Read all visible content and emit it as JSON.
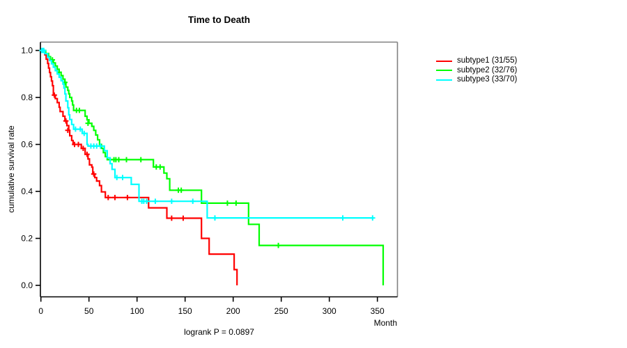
{
  "ui": {
    "title": "Time to Death",
    "y_axis_label": "cumulative survival rate",
    "x_axis_label": "Month",
    "footer": "logrank P = 0.0897",
    "legend": [
      {
        "label": "subtype1 (31/55)",
        "color": "#FF0000"
      },
      {
        "label": "subtype2 (32/76)",
        "color": "#00FF00"
      },
      {
        "label": "subtype3 (33/70)",
        "color": "#00FFFF"
      }
    ]
  },
  "chart_data": {
    "type": "line",
    "subtype": "kaplan-meier-step",
    "title": "Time to Death",
    "xlabel": "Month",
    "ylabel": "cumulative survival rate",
    "annotation": "logrank P = 0.0897",
    "xlim": [
      0,
      371
    ],
    "ylim": [
      0,
      1
    ],
    "grid": false,
    "legend_position": "right-outside",
    "x_ticks": [
      0,
      50,
      100,
      150,
      200,
      250,
      300,
      350
    ],
    "y_ticks": [
      0,
      0.2,
      0.4,
      0.6,
      0.8,
      1.0
    ],
    "axis_color": "#000000",
    "box_color": "#808080",
    "series": [
      {
        "name": "subtype1 (31/55)",
        "color": "#FF0000",
        "steps": [
          [
            0,
            1.0
          ],
          [
            4,
            0.982
          ],
          [
            5.5,
            0.963
          ],
          [
            7,
            0.945
          ],
          [
            8,
            0.925
          ],
          [
            9,
            0.906
          ],
          [
            10,
            0.888
          ],
          [
            11,
            0.87
          ],
          [
            12,
            0.85
          ],
          [
            13,
            0.81
          ],
          [
            15,
            0.795
          ],
          [
            17,
            0.778
          ],
          [
            19,
            0.758
          ],
          [
            20,
            0.74
          ],
          [
            23,
            0.72
          ],
          [
            25,
            0.7
          ],
          [
            27,
            0.68
          ],
          [
            29,
            0.66
          ],
          [
            30,
            0.637
          ],
          [
            32,
            0.617
          ],
          [
            33.5,
            0.6
          ],
          [
            42,
            0.583
          ],
          [
            46,
            0.558
          ],
          [
            49,
            0.538
          ],
          [
            50.5,
            0.513
          ],
          [
            53,
            0.503
          ],
          [
            54,
            0.474
          ],
          [
            56,
            0.459
          ],
          [
            58,
            0.444
          ],
          [
            61,
            0.425
          ],
          [
            63,
            0.398
          ],
          [
            67,
            0.374
          ],
          [
            112,
            0.33
          ],
          [
            131,
            0.286
          ],
          [
            167,
            0.2
          ],
          [
            175,
            0.133
          ],
          [
            201,
            0.067
          ],
          [
            204,
            0.0
          ]
        ],
        "censors": [
          [
            14,
            0.81
          ],
          [
            26,
            0.7
          ],
          [
            28,
            0.66
          ],
          [
            35,
            0.6
          ],
          [
            39,
            0.6
          ],
          [
            44,
            0.583
          ],
          [
            48,
            0.558
          ],
          [
            55,
            0.474
          ],
          [
            70,
            0.374
          ],
          [
            77,
            0.374
          ],
          [
            90,
            0.374
          ],
          [
            136,
            0.286
          ],
          [
            148,
            0.286
          ]
        ]
      },
      {
        "name": "subtype2 (32/76)",
        "color": "#00FF00",
        "steps": [
          [
            0,
            1.0
          ],
          [
            5,
            0.987
          ],
          [
            8,
            0.974
          ],
          [
            10,
            0.96
          ],
          [
            13,
            0.947
          ],
          [
            15,
            0.934
          ],
          [
            17,
            0.92
          ],
          [
            19,
            0.907
          ],
          [
            21,
            0.893
          ],
          [
            23,
            0.878
          ],
          [
            25,
            0.864
          ],
          [
            26,
            0.844
          ],
          [
            28,
            0.83
          ],
          [
            29,
            0.815
          ],
          [
            30,
            0.8
          ],
          [
            32,
            0.785
          ],
          [
            33,
            0.768
          ],
          [
            34,
            0.745
          ],
          [
            46,
            0.72
          ],
          [
            48,
            0.705
          ],
          [
            50,
            0.69
          ],
          [
            53,
            0.677
          ],
          [
            55,
            0.66
          ],
          [
            57,
            0.64
          ],
          [
            59,
            0.62
          ],
          [
            61,
            0.6
          ],
          [
            63,
            0.583
          ],
          [
            65,
            0.565
          ],
          [
            67,
            0.548
          ],
          [
            69,
            0.535
          ],
          [
            117,
            0.504
          ],
          [
            128,
            0.478
          ],
          [
            131,
            0.454
          ],
          [
            134,
            0.405
          ],
          [
            167,
            0.35
          ],
          [
            216,
            0.26
          ],
          [
            227,
            0.17
          ],
          [
            356,
            0.0
          ]
        ],
        "censors": [
          [
            12,
            0.96
          ],
          [
            19,
            0.907
          ],
          [
            25,
            0.864
          ],
          [
            37,
            0.745
          ],
          [
            40,
            0.745
          ],
          [
            49,
            0.69
          ],
          [
            76,
            0.535
          ],
          [
            78,
            0.535
          ],
          [
            81,
            0.535
          ],
          [
            89,
            0.535
          ],
          [
            104,
            0.535
          ],
          [
            120,
            0.504
          ],
          [
            124,
            0.504
          ],
          [
            143,
            0.405
          ],
          [
            146,
            0.405
          ],
          [
            194,
            0.35
          ],
          [
            203,
            0.35
          ],
          [
            247,
            0.17
          ]
        ]
      },
      {
        "name": "subtype3 (33/70)",
        "color": "#00FFFF",
        "steps": [
          [
            0,
            1.0
          ],
          [
            4,
            0.986
          ],
          [
            7,
            0.971
          ],
          [
            9,
            0.957
          ],
          [
            11,
            0.943
          ],
          [
            13,
            0.929
          ],
          [
            15,
            0.914
          ],
          [
            17,
            0.9
          ],
          [
            19,
            0.886
          ],
          [
            21,
            0.871
          ],
          [
            23,
            0.857
          ],
          [
            24,
            0.84
          ],
          [
            25,
            0.815
          ],
          [
            26,
            0.785
          ],
          [
            28,
            0.756
          ],
          [
            29,
            0.726
          ],
          [
            30,
            0.706
          ],
          [
            32,
            0.685
          ],
          [
            34,
            0.665
          ],
          [
            43,
            0.647
          ],
          [
            48,
            0.6
          ],
          [
            49,
            0.593
          ],
          [
            66,
            0.573
          ],
          [
            69,
            0.543
          ],
          [
            72,
            0.518
          ],
          [
            74,
            0.494
          ],
          [
            77,
            0.459
          ],
          [
            94,
            0.43
          ],
          [
            102,
            0.358
          ],
          [
            173,
            0.287
          ],
          [
            346,
            0.287
          ]
        ],
        "censors": [
          [
            1,
            1.0
          ],
          [
            2,
            1.0
          ],
          [
            3,
            1.0
          ],
          [
            36,
            0.665
          ],
          [
            41,
            0.665
          ],
          [
            45,
            0.647
          ],
          [
            52,
            0.593
          ],
          [
            55,
            0.593
          ],
          [
            58,
            0.593
          ],
          [
            62,
            0.593
          ],
          [
            79,
            0.459
          ],
          [
            85,
            0.459
          ],
          [
            105,
            0.358
          ],
          [
            107,
            0.358
          ],
          [
            110,
            0.358
          ],
          [
            119,
            0.358
          ],
          [
            136,
            0.358
          ],
          [
            158,
            0.358
          ],
          [
            181,
            0.287
          ],
          [
            314,
            0.287
          ],
          [
            345,
            0.287
          ]
        ]
      }
    ]
  }
}
